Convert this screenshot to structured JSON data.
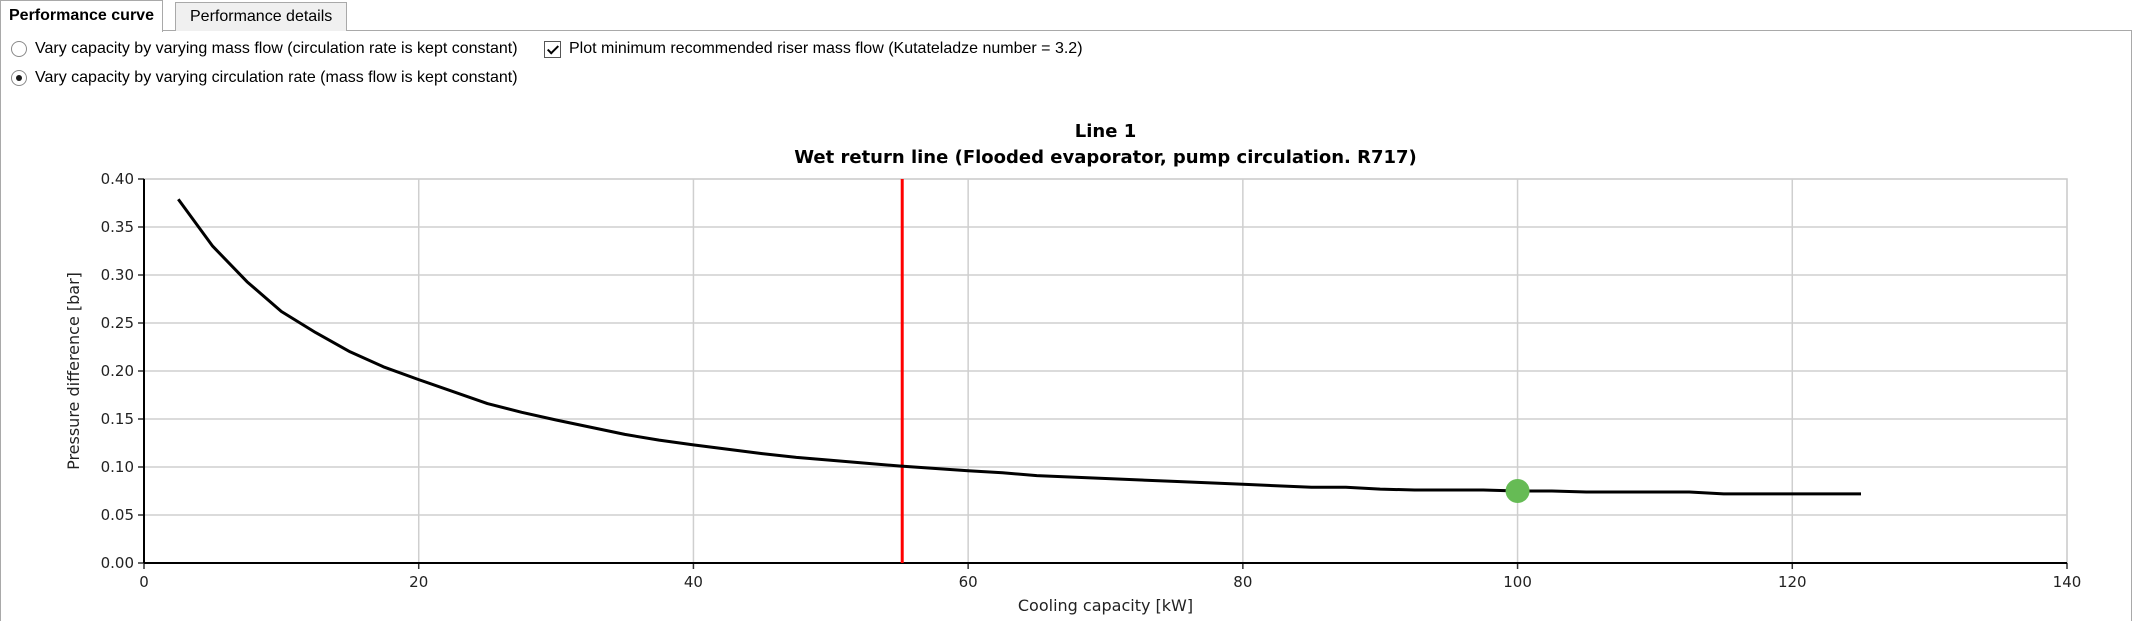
{
  "tabs": [
    {
      "label": "Performance curve",
      "active": true
    },
    {
      "label": "Performance details",
      "active": false
    }
  ],
  "options": {
    "radio_mass_flow": {
      "label": "Vary capacity by varying mass flow (circulation rate is kept constant)",
      "checked": false
    },
    "radio_circulation": {
      "label": "Vary capacity by varying circulation rate (mass flow is kept constant)",
      "checked": true
    },
    "checkbox_min_riser": {
      "label": "Plot minimum recommended riser mass flow (Kutateladze number = 3.2)",
      "checked": true
    }
  },
  "chart_data": {
    "type": "line",
    "title": "Line 1",
    "subtitle": "Wet return line (Flooded evaporator, pump circulation. R717)",
    "xlabel": "Cooling capacity [kW]",
    "ylabel": "Pressure difference [bar]",
    "xlim": [
      0,
      140
    ],
    "ylim": [
      0,
      0.4
    ],
    "x_ticks": [
      "0",
      "20",
      "40",
      "60",
      "80",
      "100",
      "120",
      "140"
    ],
    "y_ticks": [
      "0.00",
      "0.05",
      "0.10",
      "0.15",
      "0.20",
      "0.25",
      "0.30",
      "0.35",
      "0.40"
    ],
    "grid": true,
    "series": [
      {
        "color": "#000000",
        "x": [
          2.5,
          5,
          7.5,
          10,
          12.5,
          15,
          17.5,
          20,
          25,
          27.5,
          30,
          35,
          37.5,
          40,
          45,
          47.5,
          50,
          55,
          60,
          62.5,
          65,
          70,
          75,
          80,
          85,
          87.5,
          90,
          92.5,
          95,
          97.5,
          100,
          102.5,
          105,
          110,
          112.5,
          115,
          120,
          125
        ],
        "y": [
          0.379,
          0.33,
          0.293,
          0.262,
          0.24,
          0.22,
          0.204,
          0.191,
          0.166,
          0.157,
          0.149,
          0.134,
          0.128,
          0.123,
          0.114,
          0.11,
          0.107,
          0.101,
          0.096,
          0.094,
          0.091,
          0.088,
          0.085,
          0.082,
          0.079,
          0.079,
          0.077,
          0.076,
          0.076,
          0.076,
          0.075,
          0.075,
          0.074,
          0.074,
          0.074,
          0.072,
          0.072,
          0.072
        ]
      }
    ],
    "vertical_line": {
      "x": 55.2,
      "color": "#ff0000"
    },
    "marker": {
      "x": 100,
      "y": 0.075,
      "color": "#66bb55"
    }
  }
}
